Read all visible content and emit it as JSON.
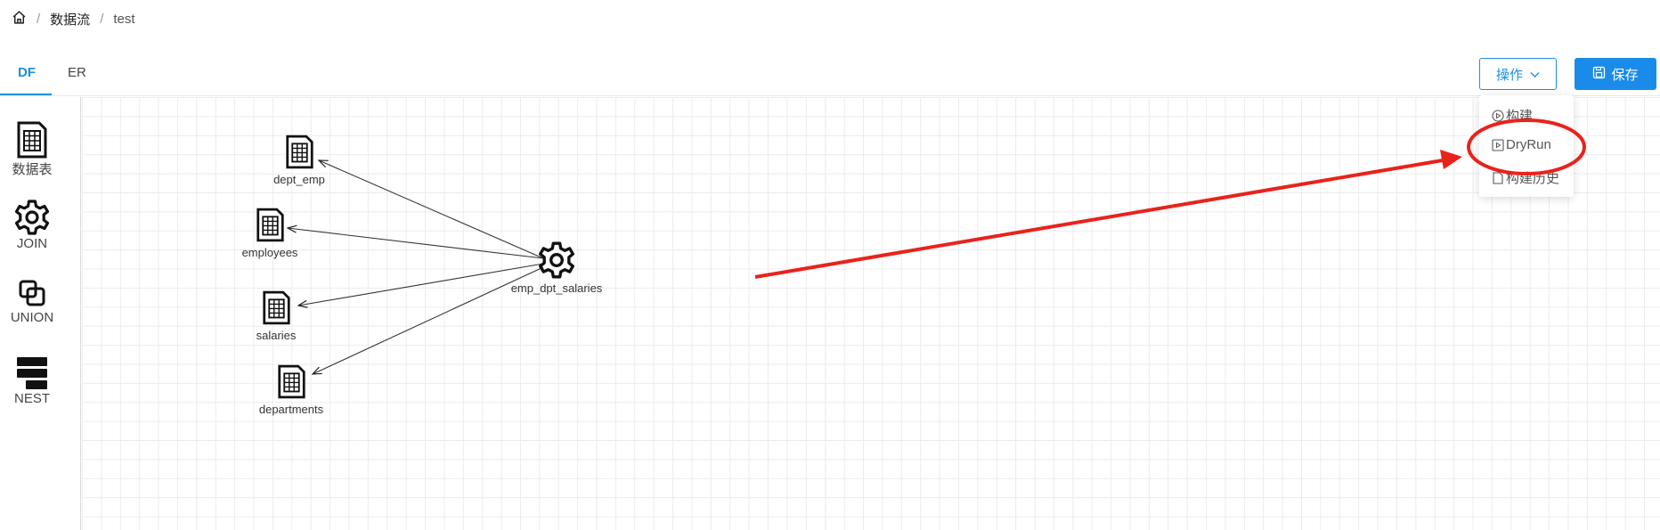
{
  "breadcrumb": {
    "home_icon": "home-icon",
    "items": [
      "数据流",
      "test"
    ],
    "separator": "/"
  },
  "tabs": [
    {
      "label": "DF",
      "active": true
    },
    {
      "label": "ER",
      "active": false
    }
  ],
  "toolbar": {
    "operations_label": "操作",
    "save_label": "保存"
  },
  "dropdown": {
    "items": [
      "构建",
      "DryRun",
      "构建历史"
    ]
  },
  "palette": [
    {
      "label": "数据表",
      "icon": "table-file-icon"
    },
    {
      "label": "JOIN",
      "icon": "gear-icon"
    },
    {
      "label": "UNION",
      "icon": "union-icon"
    },
    {
      "label": "NEST",
      "icon": "nest-icon"
    }
  ],
  "graph": {
    "join_node": "emp_dpt_salaries",
    "table_nodes": [
      "dept_emp",
      "employees",
      "salaries",
      "departments"
    ]
  },
  "colors": {
    "accent": "#1f8fe0",
    "save_bg": "#1a8be8",
    "annotation": "#e8231c"
  }
}
